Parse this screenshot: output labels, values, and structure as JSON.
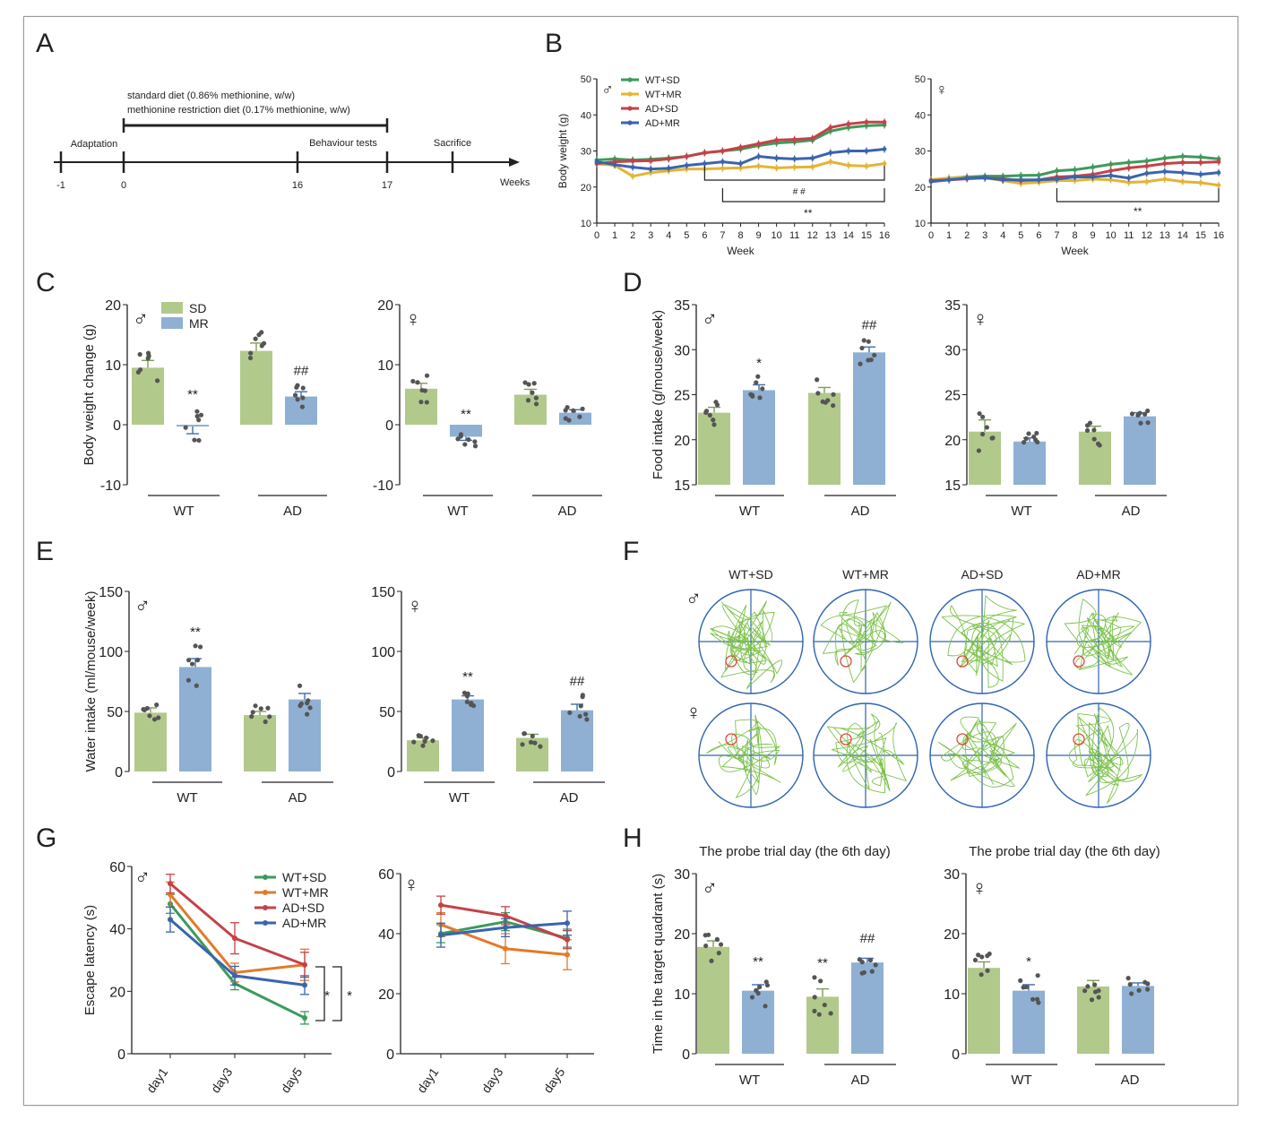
{
  "colors": {
    "bar_sd": "#b2c98c",
    "bar_mr": "#8fb0d3",
    "err_sd": "#7f9c58",
    "err_mr": "#3f6fa7",
    "line_wt_sd": "#3c9a5b",
    "line_wt_mr": "#e3b436",
    "line_ad_sd": "#c44248",
    "line_ad_mr": "#3a64ad",
    "line_wt_mr_G": "#e07b2a",
    "track": "#7cc24a",
    "pool": "#2d64b0",
    "platform": "#e0473d",
    "dot": "#555555"
  },
  "panels": {
    "A": "A",
    "B": "B",
    "C": "C",
    "D": "D",
    "E": "E",
    "F": "F",
    "G": "G",
    "H": "H"
  },
  "sex": {
    "male": "♂",
    "female": "♀"
  },
  "stats": {
    "p01": "**",
    "p05": "*",
    "h01": "##",
    "h01_spaced": "# #"
  },
  "timeline": {
    "diet1": "standard diet (0.86% methionine, w/w)",
    "diet2": "methionine restriction diet (0.17% methionine, w/w)",
    "stages": [
      {
        "week": "-1",
        "label": ""
      },
      {
        "week": "0",
        "label": "Adaptation"
      },
      {
        "week": "16",
        "label": "Behaviour tests"
      },
      {
        "week": "17",
        "label": ""
      },
      {
        "week": "",
        "label": "Sacrifice"
      }
    ],
    "axis_label": "Weeks"
  },
  "chart_data": [
    {
      "panel": "B",
      "sex": "male",
      "type": "line",
      "x": [
        0,
        1,
        2,
        3,
        4,
        5,
        6,
        7,
        8,
        9,
        10,
        11,
        12,
        13,
        14,
        15,
        16
      ],
      "xlabel": "Week",
      "ylabel": "Body weight (g)",
      "ylim": [
        10,
        50
      ],
      "yticks": [
        10,
        20,
        30,
        40,
        50
      ],
      "series": [
        {
          "name": "WT+SD",
          "values": [
            27.5,
            27.8,
            27.5,
            27.7,
            28,
            28.5,
            29.5,
            30,
            30.5,
            31.5,
            32.2,
            32.5,
            33,
            35.5,
            36.5,
            37,
            37.2
          ]
        },
        {
          "name": "WT+MR",
          "values": [
            26.5,
            26,
            23,
            24,
            24.5,
            25,
            25,
            25.2,
            25.3,
            25.8,
            25.3,
            25.5,
            25.6,
            27,
            26,
            25.8,
            26.5
          ]
        },
        {
          "name": "AD+SD",
          "values": [
            26.5,
            27,
            27.2,
            27.3,
            27.8,
            28.5,
            29.5,
            30,
            31,
            32,
            33,
            33.2,
            33.5,
            36.5,
            37.5,
            38,
            38
          ]
        },
        {
          "name": "AD+MR",
          "values": [
            27,
            26.2,
            25.5,
            25,
            25.2,
            26,
            26.5,
            27,
            26.5,
            28.5,
            28,
            27.8,
            28,
            29.5,
            30,
            30,
            30.5
          ]
        }
      ],
      "annotations": [
        "# #",
        "**"
      ]
    },
    {
      "panel": "B",
      "sex": "female",
      "type": "line",
      "x": [
        0,
        1,
        2,
        3,
        4,
        5,
        6,
        7,
        8,
        9,
        10,
        11,
        12,
        13,
        14,
        15,
        16
      ],
      "xlabel": "Week",
      "ylabel": "",
      "ylim": [
        10,
        50
      ],
      "yticks": [
        10,
        20,
        30,
        40,
        50
      ],
      "series": [
        {
          "name": "WT+SD",
          "values": [
            22,
            22.5,
            22.8,
            23,
            23,
            23.2,
            23.3,
            24.5,
            24.8,
            25.5,
            26.3,
            26.8,
            27.2,
            28,
            28.5,
            28.3,
            27.8
          ]
        },
        {
          "name": "WT+MR",
          "values": [
            22,
            22.5,
            22.6,
            22.5,
            21.8,
            21,
            21.3,
            21.8,
            21.8,
            22.2,
            22,
            21.3,
            21.5,
            22.2,
            21.5,
            21.2,
            20.5
          ]
        },
        {
          "name": "AD+SD",
          "values": [
            21.8,
            22,
            22.3,
            22.5,
            22.3,
            21.8,
            22,
            22.8,
            23,
            23.5,
            24.5,
            25.3,
            25.8,
            26.5,
            26.8,
            26.8,
            27
          ]
        },
        {
          "name": "AD+MR",
          "values": [
            21.5,
            22,
            22.5,
            22.6,
            22,
            22,
            22,
            22.2,
            22.8,
            22.8,
            23.2,
            22.5,
            23.8,
            24.3,
            24,
            23.5,
            24
          ]
        }
      ],
      "annotations": [
        "**"
      ]
    },
    {
      "panel": "C",
      "sex": "male",
      "type": "bar",
      "categories": [
        "WT",
        "AD"
      ],
      "ylabel": "Body weight change (g)",
      "ylim": [
        -10,
        20
      ],
      "yticks": [
        -10,
        0,
        10,
        20
      ],
      "series": [
        {
          "name": "SD",
          "values": [
            9.5,
            12.3
          ],
          "sem": [
            1.2,
            1.3
          ],
          "sig": [
            "",
            ""
          ]
        },
        {
          "name": "MR",
          "values": [
            -0.3,
            4.7
          ],
          "sem": [
            1.2,
            0.8
          ],
          "sig": [
            "**",
            "##"
          ]
        }
      ]
    },
    {
      "panel": "C",
      "sex": "female",
      "type": "bar",
      "categories": [
        "WT",
        "AD"
      ],
      "ylabel": "",
      "ylim": [
        -10,
        20
      ],
      "yticks": [
        -10,
        0,
        10,
        20
      ],
      "series": [
        {
          "name": "SD",
          "values": [
            6,
            5
          ],
          "sem": [
            0.9,
            0.9
          ],
          "sig": [
            "",
            ""
          ]
        },
        {
          "name": "MR",
          "values": [
            -2,
            2
          ],
          "sem": [
            0.6,
            0.5
          ],
          "sig": [
            "**",
            ""
          ]
        }
      ]
    },
    {
      "panel": "D",
      "sex": "male",
      "type": "bar",
      "categories": [
        "WT",
        "AD"
      ],
      "ylabel": "Food intake (g/mouse/week)",
      "ylim": [
        15,
        35
      ],
      "yticks": [
        15,
        20,
        25,
        30,
        35
      ],
      "series": [
        {
          "name": "SD",
          "values": [
            23,
            25.2
          ],
          "sem": [
            0.6,
            0.6
          ],
          "sig": [
            "",
            ""
          ]
        },
        {
          "name": "MR",
          "values": [
            25.5,
            29.7
          ],
          "sem": [
            0.6,
            0.6
          ],
          "sig": [
            "*",
            "##"
          ]
        }
      ]
    },
    {
      "panel": "D",
      "sex": "female",
      "type": "bar",
      "categories": [
        "WT",
        "AD"
      ],
      "ylabel": "",
      "ylim": [
        15,
        35
      ],
      "yticks": [
        15,
        20,
        25,
        30,
        35
      ],
      "series": [
        {
          "name": "SD",
          "values": [
            20.9,
            20.9
          ],
          "sem": [
            1.3,
            0.6
          ],
          "sig": [
            "",
            ""
          ]
        },
        {
          "name": "MR",
          "values": [
            19.8,
            22.6
          ],
          "sem": [
            0.4,
            0.4
          ],
          "sig": [
            "",
            ""
          ]
        }
      ]
    },
    {
      "panel": "E",
      "sex": "male",
      "type": "bar",
      "categories": [
        "WT",
        "AD"
      ],
      "ylabel": "Water intake (ml/mouse/week)",
      "ylim": [
        0,
        150
      ],
      "yticks": [
        0,
        50,
        100,
        150
      ],
      "series": [
        {
          "name": "SD",
          "values": [
            49,
            47
          ],
          "sem": [
            4,
            3
          ],
          "sig": [
            "",
            ""
          ]
        },
        {
          "name": "MR",
          "values": [
            87,
            60
          ],
          "sem": [
            7,
            5
          ],
          "sig": [
            "**",
            ""
          ]
        }
      ]
    },
    {
      "panel": "E",
      "sex": "female",
      "type": "bar",
      "categories": [
        "WT",
        "AD"
      ],
      "ylabel": "",
      "ylim": [
        0,
        150
      ],
      "yticks": [
        0,
        50,
        100,
        150
      ],
      "series": [
        {
          "name": "SD",
          "values": [
            26,
            28
          ],
          "sem": [
            2,
            3
          ],
          "sig": [
            "",
            ""
          ]
        },
        {
          "name": "MR",
          "values": [
            60,
            51
          ],
          "sem": [
            3,
            5
          ],
          "sig": [
            "**",
            "##"
          ]
        }
      ]
    },
    {
      "panel": "G",
      "sex": "male",
      "type": "line",
      "categories": [
        "day1",
        "day3",
        "day5"
      ],
      "ylabel": "Escape latency (s)",
      "ylim": [
        0,
        60
      ],
      "yticks": [
        0,
        20,
        40,
        60
      ],
      "series": [
        {
          "name": "WT+SD",
          "values": [
            48,
            22.5,
            11.5
          ],
          "sem": [
            3,
            2,
            2
          ]
        },
        {
          "name": "WT+MR",
          "values": [
            51,
            26,
            28.5
          ],
          "sem": [
            4,
            3,
            5
          ]
        },
        {
          "name": "AD+SD",
          "values": [
            54.5,
            37,
            28.5
          ],
          "sem": [
            3,
            5,
            4
          ]
        },
        {
          "name": "AD+MR",
          "values": [
            43,
            25,
            22
          ],
          "sem": [
            4,
            3,
            3
          ]
        }
      ],
      "brackets": [
        "*",
        "*"
      ]
    },
    {
      "panel": "G",
      "sex": "female",
      "type": "line",
      "categories": [
        "day1",
        "day3",
        "day5"
      ],
      "ylabel": "",
      "ylim": [
        0,
        60
      ],
      "yticks": [
        0,
        20,
        40,
        60
      ],
      "series": [
        {
          "name": "WT+SD",
          "values": [
            40,
            44,
            38.5
          ],
          "sem": [
            3,
            3,
            3
          ]
        },
        {
          "name": "WT+MR",
          "values": [
            43,
            35,
            33
          ],
          "sem": [
            4,
            5,
            5
          ]
        },
        {
          "name": "AD+SD",
          "values": [
            49.5,
            46,
            38
          ],
          "sem": [
            3,
            3,
            3
          ]
        },
        {
          "name": "AD+MR",
          "values": [
            39.5,
            42,
            43.5
          ],
          "sem": [
            4,
            3,
            4
          ]
        }
      ]
    },
    {
      "panel": "H",
      "sex": "male",
      "type": "bar",
      "title": "The probe trial day (the 6th day)",
      "categories": [
        "WT",
        "AD"
      ],
      "ylabel": "Time in the target quadrant (s)",
      "ylim": [
        0,
        30
      ],
      "yticks": [
        0,
        10,
        20,
        30
      ],
      "series": [
        {
          "name": "SD",
          "values": [
            17.8,
            9.5
          ],
          "sem": [
            1,
            1.3
          ],
          "sig": [
            "",
            "**"
          ]
        },
        {
          "name": "MR",
          "values": [
            10.5,
            15.2
          ],
          "sem": [
            1,
            0.7
          ],
          "sig": [
            "**",
            "##"
          ]
        }
      ]
    },
    {
      "panel": "H",
      "sex": "female",
      "type": "bar",
      "title": "The probe trial day (the 6th day)",
      "categories": [
        "WT",
        "AD"
      ],
      "ylabel": "",
      "ylim": [
        0,
        30
      ],
      "yticks": [
        0,
        10,
        20,
        30
      ],
      "series": [
        {
          "name": "SD",
          "values": [
            14.3,
            11.2
          ],
          "sem": [
            1,
            1
          ],
          "sig": [
            "",
            ""
          ]
        },
        {
          "name": "MR",
          "values": [
            10.5,
            11.3
          ],
          "sem": [
            1,
            0.5
          ],
          "sig": [
            "*",
            ""
          ]
        }
      ]
    }
  ],
  "tracks": {
    "columns": [
      "WT+SD",
      "WT+MR",
      "AD+SD",
      "AD+MR"
    ]
  }
}
